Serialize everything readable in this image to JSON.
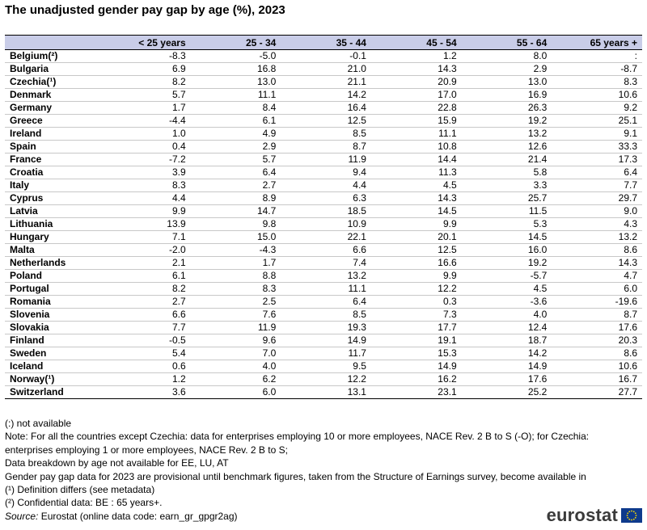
{
  "title": "The unadjusted gender pay gap by age (%), 2023",
  "table": {
    "columns": [
      "",
      "< 25 years",
      "25 - 34",
      "35 - 44",
      "45 - 54",
      "55 - 64",
      "65 years +"
    ],
    "rows": [
      [
        "Belgium(²)",
        "-8.3",
        "-5.0",
        "-0.1",
        "1.2",
        "8.0",
        ":"
      ],
      [
        "Bulgaria",
        "6.9",
        "16.8",
        "21.0",
        "14.3",
        "2.9",
        "-8.7"
      ],
      [
        "Czechia(¹)",
        "8.2",
        "13.0",
        "21.1",
        "20.9",
        "13.0",
        "8.3"
      ],
      [
        "Denmark",
        "5.7",
        "11.1",
        "14.2",
        "17.0",
        "16.9",
        "10.6"
      ],
      [
        "Germany",
        "1.7",
        "8.4",
        "16.4",
        "22.8",
        "26.3",
        "9.2"
      ],
      [
        "Greece",
        "-4.4",
        "6.1",
        "12.5",
        "15.9",
        "19.2",
        "25.1"
      ],
      [
        "Ireland",
        "1.0",
        "4.9",
        "8.5",
        "11.1",
        "13.2",
        "9.1"
      ],
      [
        "Spain",
        "0.4",
        "2.9",
        "8.7",
        "10.8",
        "12.6",
        "33.3"
      ],
      [
        "France",
        "-7.2",
        "5.7",
        "11.9",
        "14.4",
        "21.4",
        "17.3"
      ],
      [
        "Croatia",
        "3.9",
        "6.4",
        "9.4",
        "11.3",
        "5.8",
        "6.4"
      ],
      [
        "Italy",
        "8.3",
        "2.7",
        "4.4",
        "4.5",
        "3.3",
        "7.7"
      ],
      [
        "Cyprus",
        "4.4",
        "8.9",
        "6.3",
        "14.3",
        "25.7",
        "29.7"
      ],
      [
        "Latvia",
        "9.9",
        "14.7",
        "18.5",
        "14.5",
        "11.5",
        "9.0"
      ],
      [
        "Lithuania",
        "13.9",
        "9.8",
        "10.9",
        "9.9",
        "5.3",
        "4.3"
      ],
      [
        "Hungary",
        "7.1",
        "15.0",
        "22.1",
        "20.1",
        "14.5",
        "13.2"
      ],
      [
        "Malta",
        "-2.0",
        "-4.3",
        "6.6",
        "12.5",
        "16.0",
        "8.6"
      ],
      [
        "Netherlands",
        "2.1",
        "1.7",
        "7.4",
        "16.6",
        "19.2",
        "14.3"
      ],
      [
        "Poland",
        "6.1",
        "8.8",
        "13.2",
        "9.9",
        "-5.7",
        "4.7"
      ],
      [
        "Portugal",
        "8.2",
        "8.3",
        "11.1",
        "12.2",
        "4.5",
        "6.0"
      ],
      [
        "Romania",
        "2.7",
        "2.5",
        "6.4",
        "0.3",
        "-3.6",
        "-19.6"
      ],
      [
        "Slovenia",
        "6.6",
        "7.6",
        "8.5",
        "7.3",
        "4.0",
        "8.7"
      ],
      [
        "Slovakia",
        "7.7",
        "11.9",
        "19.3",
        "17.7",
        "12.4",
        "17.6"
      ],
      [
        "Finland",
        "-0.5",
        "9.6",
        "14.9",
        "19.1",
        "18.7",
        "20.3"
      ],
      [
        "Sweden",
        "5.4",
        "7.0",
        "11.7",
        "15.3",
        "14.2",
        "8.6"
      ],
      [
        "Iceland",
        "0.6",
        "4.0",
        "9.5",
        "14.9",
        "14.9",
        "10.6"
      ],
      [
        "Norway(¹)",
        "1.2",
        "6.2",
        "12.2",
        "16.2",
        "17.6",
        "16.7"
      ],
      [
        "Switzerland",
        "3.6",
        "6.0",
        "13.1",
        "23.1",
        "25.2",
        "27.7"
      ]
    ],
    "group_start_rows": [
      24
    ]
  },
  "notes": [
    "(:) not available",
    "Note:  For all the countries except Czechia: data for enterprises employing 10 or more employees, NACE Rev. 2 B to S (-O);  for Czechia:",
    "enterprises employing 1 or more employees, NACE Rev. 2 B to S;",
    "Data breakdown by age not available for EE, LU, AT",
    "Gender pay gap data for 2023 are provisional until benchmark figures, taken from the Structure of Earnings survey, become available in",
    "(¹) Definition differs (see metadata)",
    "(²) Confidential data: BE : 65 years+."
  ],
  "source": {
    "label": "Source:",
    "text": "  Eurostat (online data code: earn_gr_gpgr2ag)"
  },
  "logo": {
    "text": "eurostat",
    "flag_color": "#0e3a8c",
    "star_color": "#ffdd00"
  }
}
